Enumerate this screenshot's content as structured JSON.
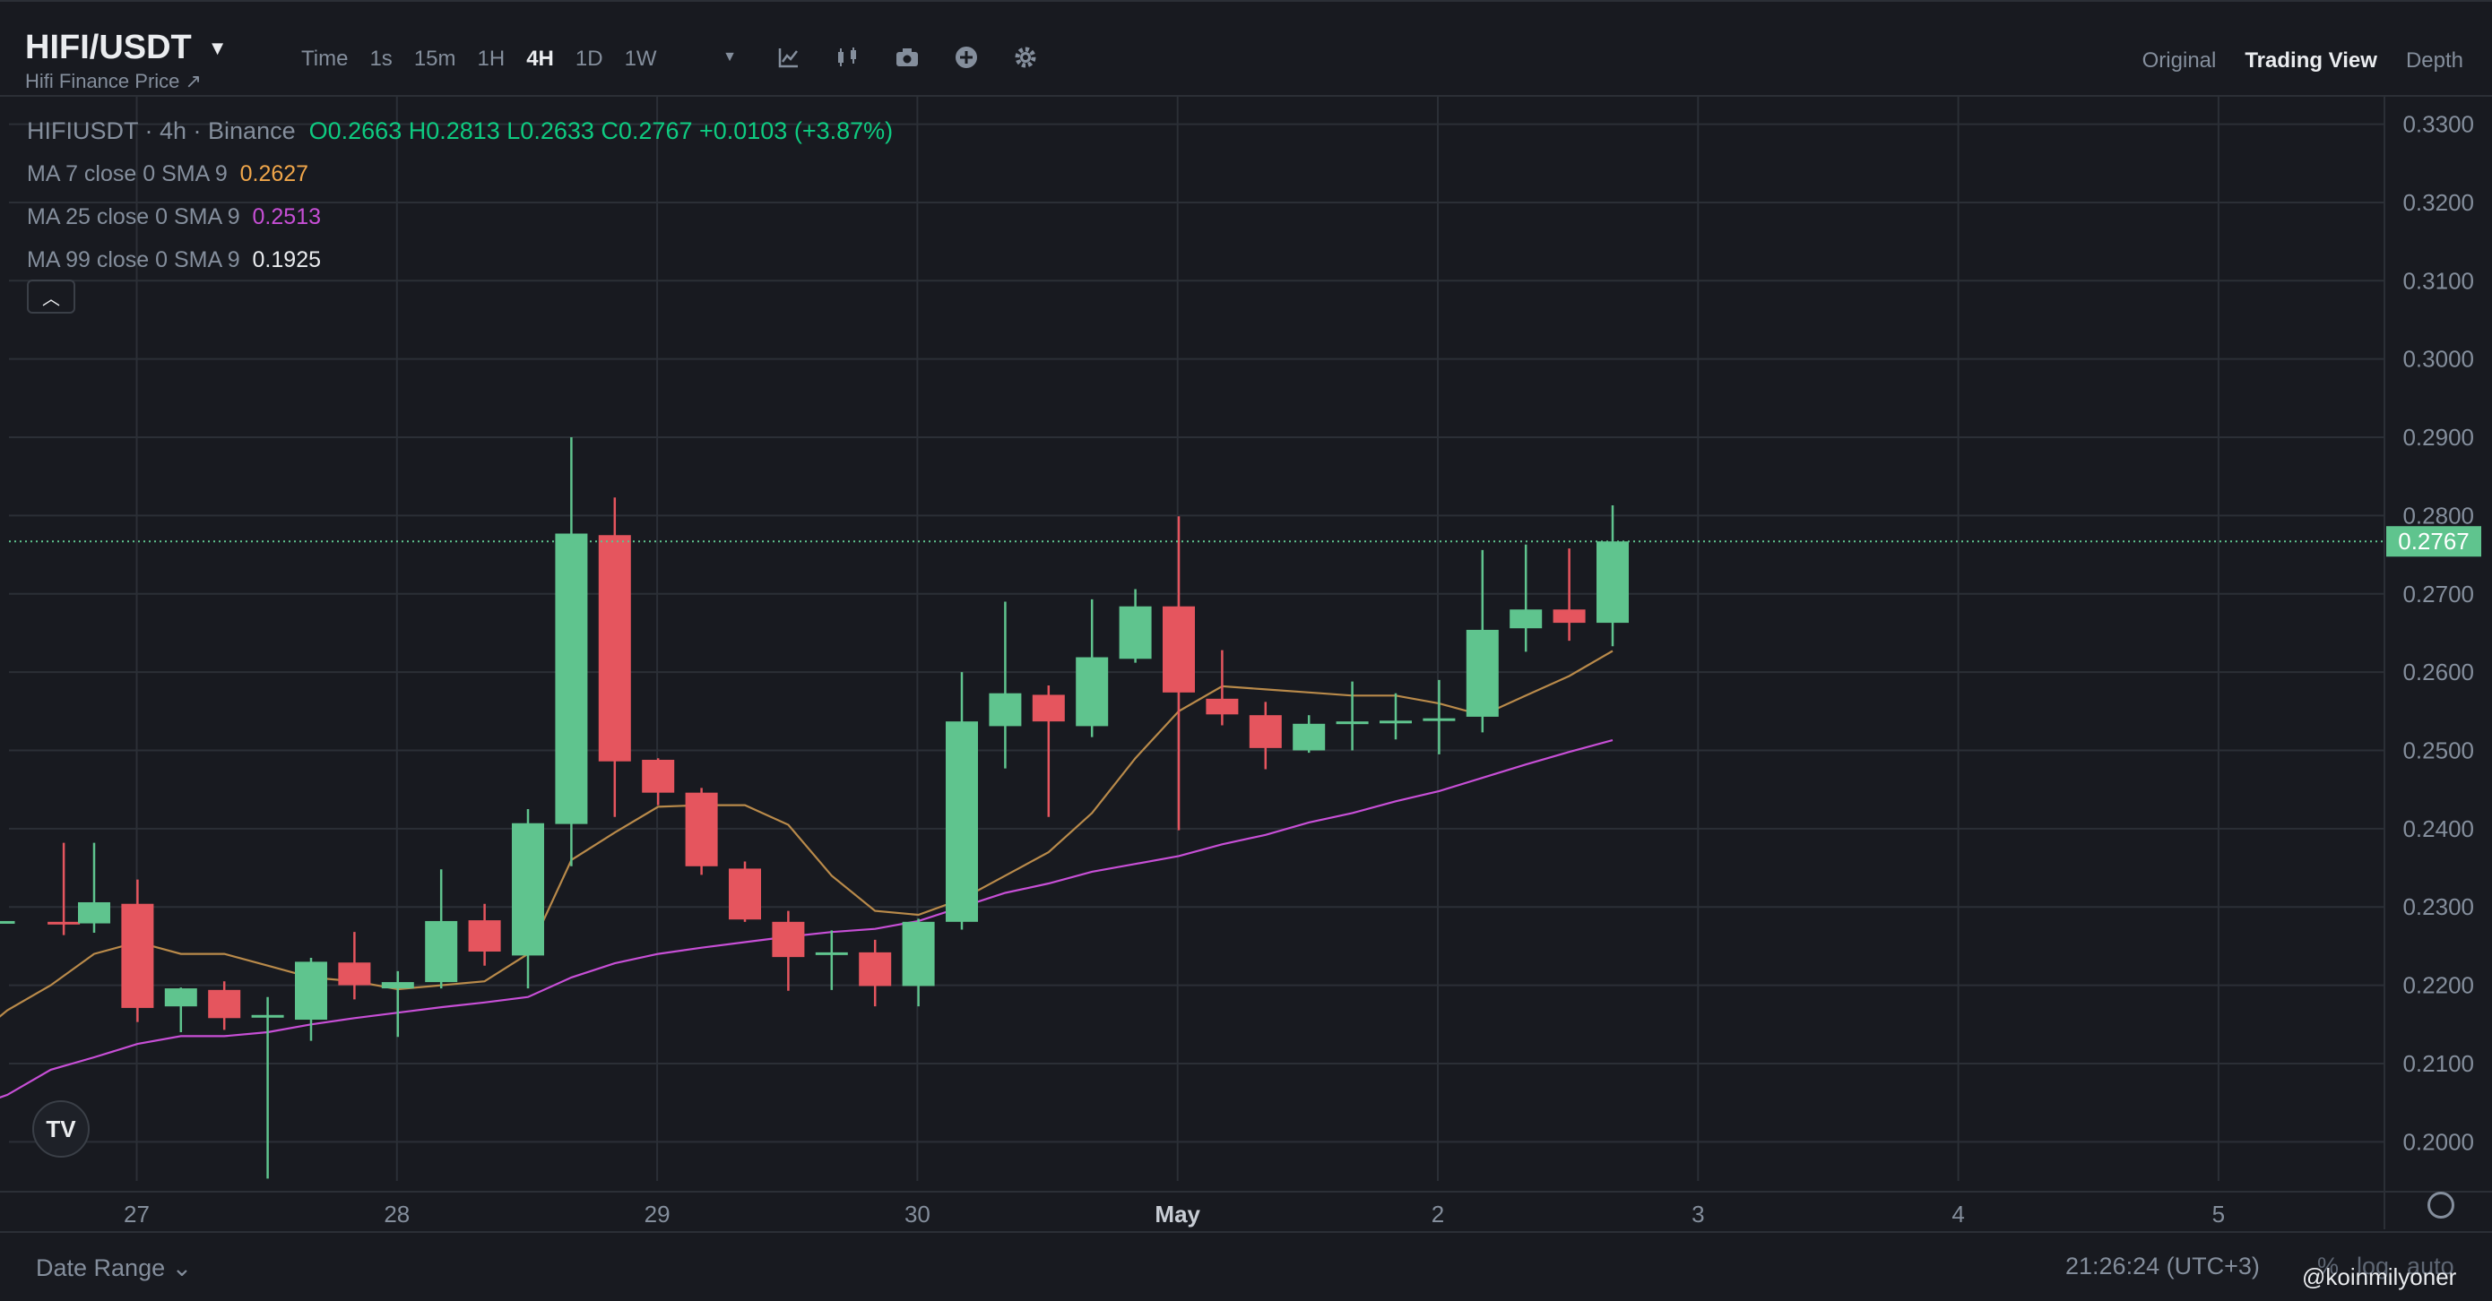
{
  "header": {
    "symbol": "HIFI/USDT",
    "subtitle": "Hifi Finance Price ↗",
    "intervals": [
      "Time",
      "1s",
      "15m",
      "1H",
      "4H",
      "1D",
      "1W"
    ],
    "active_interval": "4H",
    "views": [
      "Original",
      "Trading View",
      "Depth"
    ],
    "active_view": "Trading View"
  },
  "legend": {
    "title": "HIFIUSDT · 4h · Binance",
    "ohlc": "O0.2663 H0.2813 L0.2633 C0.2767 +0.0103 (+3.87%)",
    "ma7": {
      "label": "MA 7 close 0 SMA 9",
      "value": "0.2627",
      "color": "#f0a64a"
    },
    "ma25": {
      "label": "MA 25 close 0 SMA 9",
      "value": "0.2513",
      "color": "#c74fd6"
    },
    "ma99": {
      "label": "MA 99 close 0 SMA 9",
      "value": "0.1925",
      "color": "#eaecef"
    }
  },
  "footer": {
    "date_range": "Date Range ⌄",
    "clock": "21:26:24 (UTC+3)",
    "extra": [
      "%",
      "log",
      "auto"
    ],
    "watermark": "@koinmilyoner"
  },
  "colors": {
    "up": "#5fc48e",
    "down": "#e5555e",
    "bg": "#181a20",
    "grid": "#2b2f36"
  },
  "chart_data": {
    "type": "candlestick",
    "title": "HIFIUSDT · 4h · Binance",
    "ylim": [
      0.195,
      0.3335
    ],
    "y_ticks": [
      "0.2000",
      "0.2100",
      "0.2200",
      "0.2300",
      "0.2400",
      "0.2500",
      "0.2600",
      "0.2700",
      "0.2800",
      "0.2900",
      "0.3000",
      "0.3100",
      "0.3200",
      "0.3300"
    ],
    "x_labels": [
      "27",
      "28",
      "29",
      "30",
      "May",
      "2",
      "3",
      "4",
      "5"
    ],
    "last_price": "0.2767",
    "candles": [
      {
        "i": -2.2,
        "o": 0.2282,
        "h": 0.2282,
        "l": 0.2278,
        "c": 0.2282
      },
      {
        "i": -0.7,
        "o": 0.2281,
        "h": 0.2382,
        "l": 0.2264,
        "c": 0.228
      },
      {
        "i": 0,
        "o": 0.2279,
        "h": 0.2382,
        "l": 0.2267,
        "c": 0.2306
      },
      {
        "i": 1,
        "o": 0.2304,
        "h": 0.2335,
        "l": 0.2153,
        "c": 0.2171
      },
      {
        "i": 2,
        "o": 0.2173,
        "h": 0.2197,
        "l": 0.214,
        "c": 0.2196
      },
      {
        "i": 3,
        "o": 0.2194,
        "h": 0.2205,
        "l": 0.2143,
        "c": 0.2158
      },
      {
        "i": 4,
        "o": 0.216,
        "h": 0.2185,
        "l": 0.1953,
        "c": 0.2162
      },
      {
        "i": 5,
        "o": 0.2156,
        "h": 0.2235,
        "l": 0.2129,
        "c": 0.223
      },
      {
        "i": 6,
        "o": 0.2229,
        "h": 0.2268,
        "l": 0.2182,
        "c": 0.22
      },
      {
        "i": 7,
        "o": 0.2196,
        "h": 0.2218,
        "l": 0.2134,
        "c": 0.2204
      },
      {
        "i": 8,
        "o": 0.2204,
        "h": 0.2348,
        "l": 0.2196,
        "c": 0.2282
      },
      {
        "i": 9,
        "o": 0.2283,
        "h": 0.2304,
        "l": 0.2225,
        "c": 0.2243
      },
      {
        "i": 10,
        "o": 0.2238,
        "h": 0.2425,
        "l": 0.2196,
        "c": 0.2407
      },
      {
        "i": 11,
        "o": 0.2406,
        "h": 0.29,
        "l": 0.2352,
        "c": 0.2777
      },
      {
        "i": 12,
        "o": 0.2775,
        "h": 0.2823,
        "l": 0.2415,
        "c": 0.2486
      },
      {
        "i": 13,
        "o": 0.2488,
        "h": 0.249,
        "l": 0.243,
        "c": 0.2446
      },
      {
        "i": 14,
        "o": 0.2446,
        "h": 0.2452,
        "l": 0.2341,
        "c": 0.2352
      },
      {
        "i": 15,
        "o": 0.2349,
        "h": 0.2358,
        "l": 0.2281,
        "c": 0.2284
      },
      {
        "i": 16,
        "o": 0.2281,
        "h": 0.2295,
        "l": 0.2193,
        "c": 0.2236
      },
      {
        "i": 17,
        "o": 0.2241,
        "h": 0.227,
        "l": 0.2194,
        "c": 0.2242
      },
      {
        "i": 18,
        "o": 0.2242,
        "h": 0.2258,
        "l": 0.2173,
        "c": 0.2199
      },
      {
        "i": 19,
        "o": 0.2199,
        "h": 0.2285,
        "l": 0.2173,
        "c": 0.2281
      },
      {
        "i": 20,
        "o": 0.2281,
        "h": 0.26,
        "l": 0.2271,
        "c": 0.2537
      },
      {
        "i": 21,
        "o": 0.2531,
        "h": 0.269,
        "l": 0.2477,
        "c": 0.2573
      },
      {
        "i": 22,
        "o": 0.2571,
        "h": 0.2583,
        "l": 0.2415,
        "c": 0.2537
      },
      {
        "i": 23,
        "o": 0.2531,
        "h": 0.2693,
        "l": 0.2517,
        "c": 0.2619
      },
      {
        "i": 24,
        "o": 0.2617,
        "h": 0.2706,
        "l": 0.2612,
        "c": 0.2684
      },
      {
        "i": 25,
        "o": 0.2684,
        "h": 0.2799,
        "l": 0.2398,
        "c": 0.2574
      },
      {
        "i": 26,
        "o": 0.2566,
        "h": 0.2628,
        "l": 0.2532,
        "c": 0.2546
      },
      {
        "i": 27,
        "o": 0.2545,
        "h": 0.2562,
        "l": 0.2476,
        "c": 0.2503
      },
      {
        "i": 28,
        "o": 0.25,
        "h": 0.2545,
        "l": 0.2497,
        "c": 0.2534
      },
      {
        "i": 29,
        "o": 0.2536,
        "h": 0.2588,
        "l": 0.25,
        "c": 0.2537
      },
      {
        "i": 30,
        "o": 0.2537,
        "h": 0.2573,
        "l": 0.2514,
        "c": 0.2538
      },
      {
        "i": 31,
        "o": 0.2538,
        "h": 0.259,
        "l": 0.2495,
        "c": 0.2541
      },
      {
        "i": 32,
        "o": 0.2543,
        "h": 0.2756,
        "l": 0.2523,
        "c": 0.2654
      },
      {
        "i": 33,
        "o": 0.2656,
        "h": 0.2763,
        "l": 0.2626,
        "c": 0.268
      },
      {
        "i": 34,
        "o": 0.268,
        "h": 0.2758,
        "l": 0.264,
        "c": 0.2663
      },
      {
        "i": 35,
        "o": 0.2663,
        "h": 0.2813,
        "l": 0.2633,
        "c": 0.2767
      }
    ],
    "ma7": [
      [
        -2.5,
        0.2145
      ],
      [
        -2,
        0.2168
      ],
      [
        -1,
        0.22
      ],
      [
        0,
        0.224
      ],
      [
        1,
        0.2255
      ],
      [
        2,
        0.224
      ],
      [
        3,
        0.224
      ],
      [
        4,
        0.2225
      ],
      [
        5,
        0.221
      ],
      [
        6,
        0.2205
      ],
      [
        7,
        0.2195
      ],
      [
        8,
        0.22
      ],
      [
        9,
        0.2205
      ],
      [
        10,
        0.224
      ],
      [
        11,
        0.236
      ],
      [
        12,
        0.2395
      ],
      [
        13,
        0.2428
      ],
      [
        14,
        0.243
      ],
      [
        15,
        0.243
      ],
      [
        16,
        0.2405
      ],
      [
        17,
        0.234
      ],
      [
        18,
        0.2295
      ],
      [
        19,
        0.229
      ],
      [
        20,
        0.231
      ],
      [
        21,
        0.234
      ],
      [
        22,
        0.237
      ],
      [
        23,
        0.242
      ],
      [
        24,
        0.249
      ],
      [
        25,
        0.255
      ],
      [
        26,
        0.2582
      ],
      [
        27,
        0.2578
      ],
      [
        28,
        0.2574
      ],
      [
        29,
        0.257
      ],
      [
        30,
        0.257
      ],
      [
        31,
        0.256
      ],
      [
        32,
        0.2545
      ],
      [
        33,
        0.257
      ],
      [
        34,
        0.2595
      ],
      [
        35,
        0.2627
      ]
    ],
    "ma25": [
      [
        -2.5,
        0.205
      ],
      [
        -2,
        0.206
      ],
      [
        -1,
        0.2092
      ],
      [
        0,
        0.2108
      ],
      [
        1,
        0.2125
      ],
      [
        2,
        0.2135
      ],
      [
        3,
        0.2135
      ],
      [
        4,
        0.214
      ],
      [
        5,
        0.215
      ],
      [
        6,
        0.2158
      ],
      [
        7,
        0.2165
      ],
      [
        8,
        0.2172
      ],
      [
        9,
        0.2178
      ],
      [
        10,
        0.2185
      ],
      [
        11,
        0.221
      ],
      [
        12,
        0.2228
      ],
      [
        13,
        0.224
      ],
      [
        14,
        0.2248
      ],
      [
        15,
        0.2255
      ],
      [
        16,
        0.2262
      ],
      [
        17,
        0.2268
      ],
      [
        18,
        0.2272
      ],
      [
        19,
        0.2282
      ],
      [
        20,
        0.23
      ],
      [
        21,
        0.2318
      ],
      [
        22,
        0.233
      ],
      [
        23,
        0.2345
      ],
      [
        24,
        0.2355
      ],
      [
        25,
        0.2365
      ],
      [
        26,
        0.238
      ],
      [
        27,
        0.2392
      ],
      [
        28,
        0.2408
      ],
      [
        29,
        0.242
      ],
      [
        30,
        0.2435
      ],
      [
        31,
        0.2448
      ],
      [
        32,
        0.2465
      ],
      [
        33,
        0.2482
      ],
      [
        34,
        0.2498
      ],
      [
        35,
        0.2513
      ]
    ]
  }
}
